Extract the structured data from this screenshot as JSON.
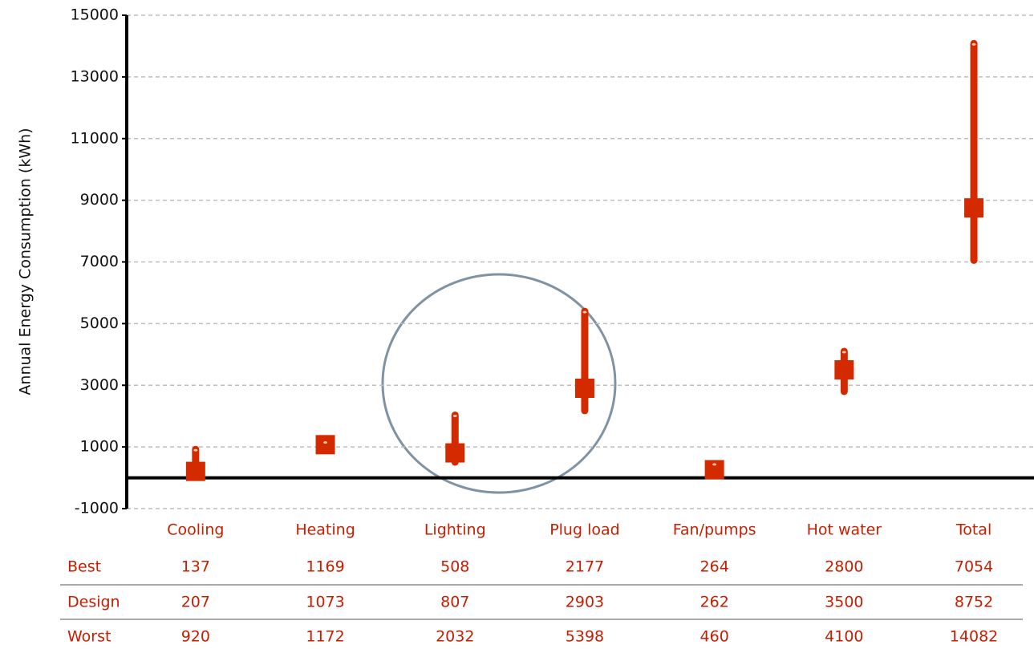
{
  "chart_data": {
    "type": "range",
    "y_label": "Annual Energy Consumption (kWh)",
    "categories": [
      "Cooling",
      "Heating",
      "Lighting",
      "Plug load",
      "Fan/pumps",
      "Hot water",
      "Total"
    ],
    "series": [
      {
        "name": "Best",
        "color": "#d42a00",
        "values": [
          137,
          1169,
          508,
          2177,
          264,
          2800,
          7054
        ]
      },
      {
        "name": "Design",
        "color": "#d42a00",
        "values": [
          207,
          1073,
          807,
          2903,
          262,
          3500,
          8752
        ]
      },
      {
        "name": "Worst",
        "color": "#d42a00",
        "values": [
          920,
          1172,
          2032,
          5398,
          460,
          4100,
          14082
        ]
      }
    ],
    "ylim": [
      -1000,
      15000
    ],
    "yticks": [
      -1000,
      1000,
      3000,
      5000,
      7000,
      9000,
      11000,
      13000,
      15000
    ],
    "grid": true
  }
}
